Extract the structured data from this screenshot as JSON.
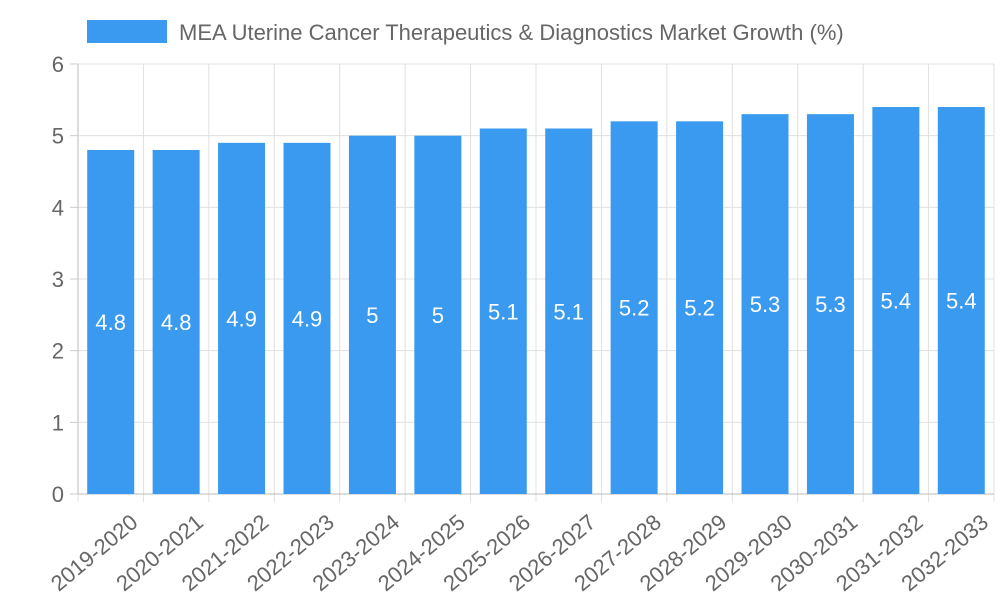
{
  "chart_data": {
    "type": "bar",
    "title": "",
    "legend": {
      "label": "MEA Uterine Cancer Therapeutics & Diagnostics Market Growth (%)",
      "placement": "top-center"
    },
    "categories": [
      "2019-2020",
      "2020-2021",
      "2021-2022",
      "2022-2023",
      "2023-2024",
      "2024-2025",
      "2025-2026",
      "2026-2027",
      "2027-2028",
      "2028-2029",
      "2029-2030",
      "2030-2031",
      "2031-2032",
      "2032-2033"
    ],
    "series": [
      {
        "name": "MEA Uterine Cancer Therapeutics & Diagnostics Market Growth (%)",
        "values": [
          4.8,
          4.8,
          4.9,
          4.9,
          5,
          5,
          5.1,
          5.1,
          5.2,
          5.2,
          5.3,
          5.3,
          5.4,
          5.4
        ]
      }
    ],
    "ylim": [
      0,
      6
    ],
    "yticks": [
      0,
      1,
      2,
      3,
      4,
      5,
      6
    ],
    "xlabel": "",
    "ylabel": "",
    "grid": true,
    "data_labels": true,
    "bar_color": "#3a9af0"
  }
}
